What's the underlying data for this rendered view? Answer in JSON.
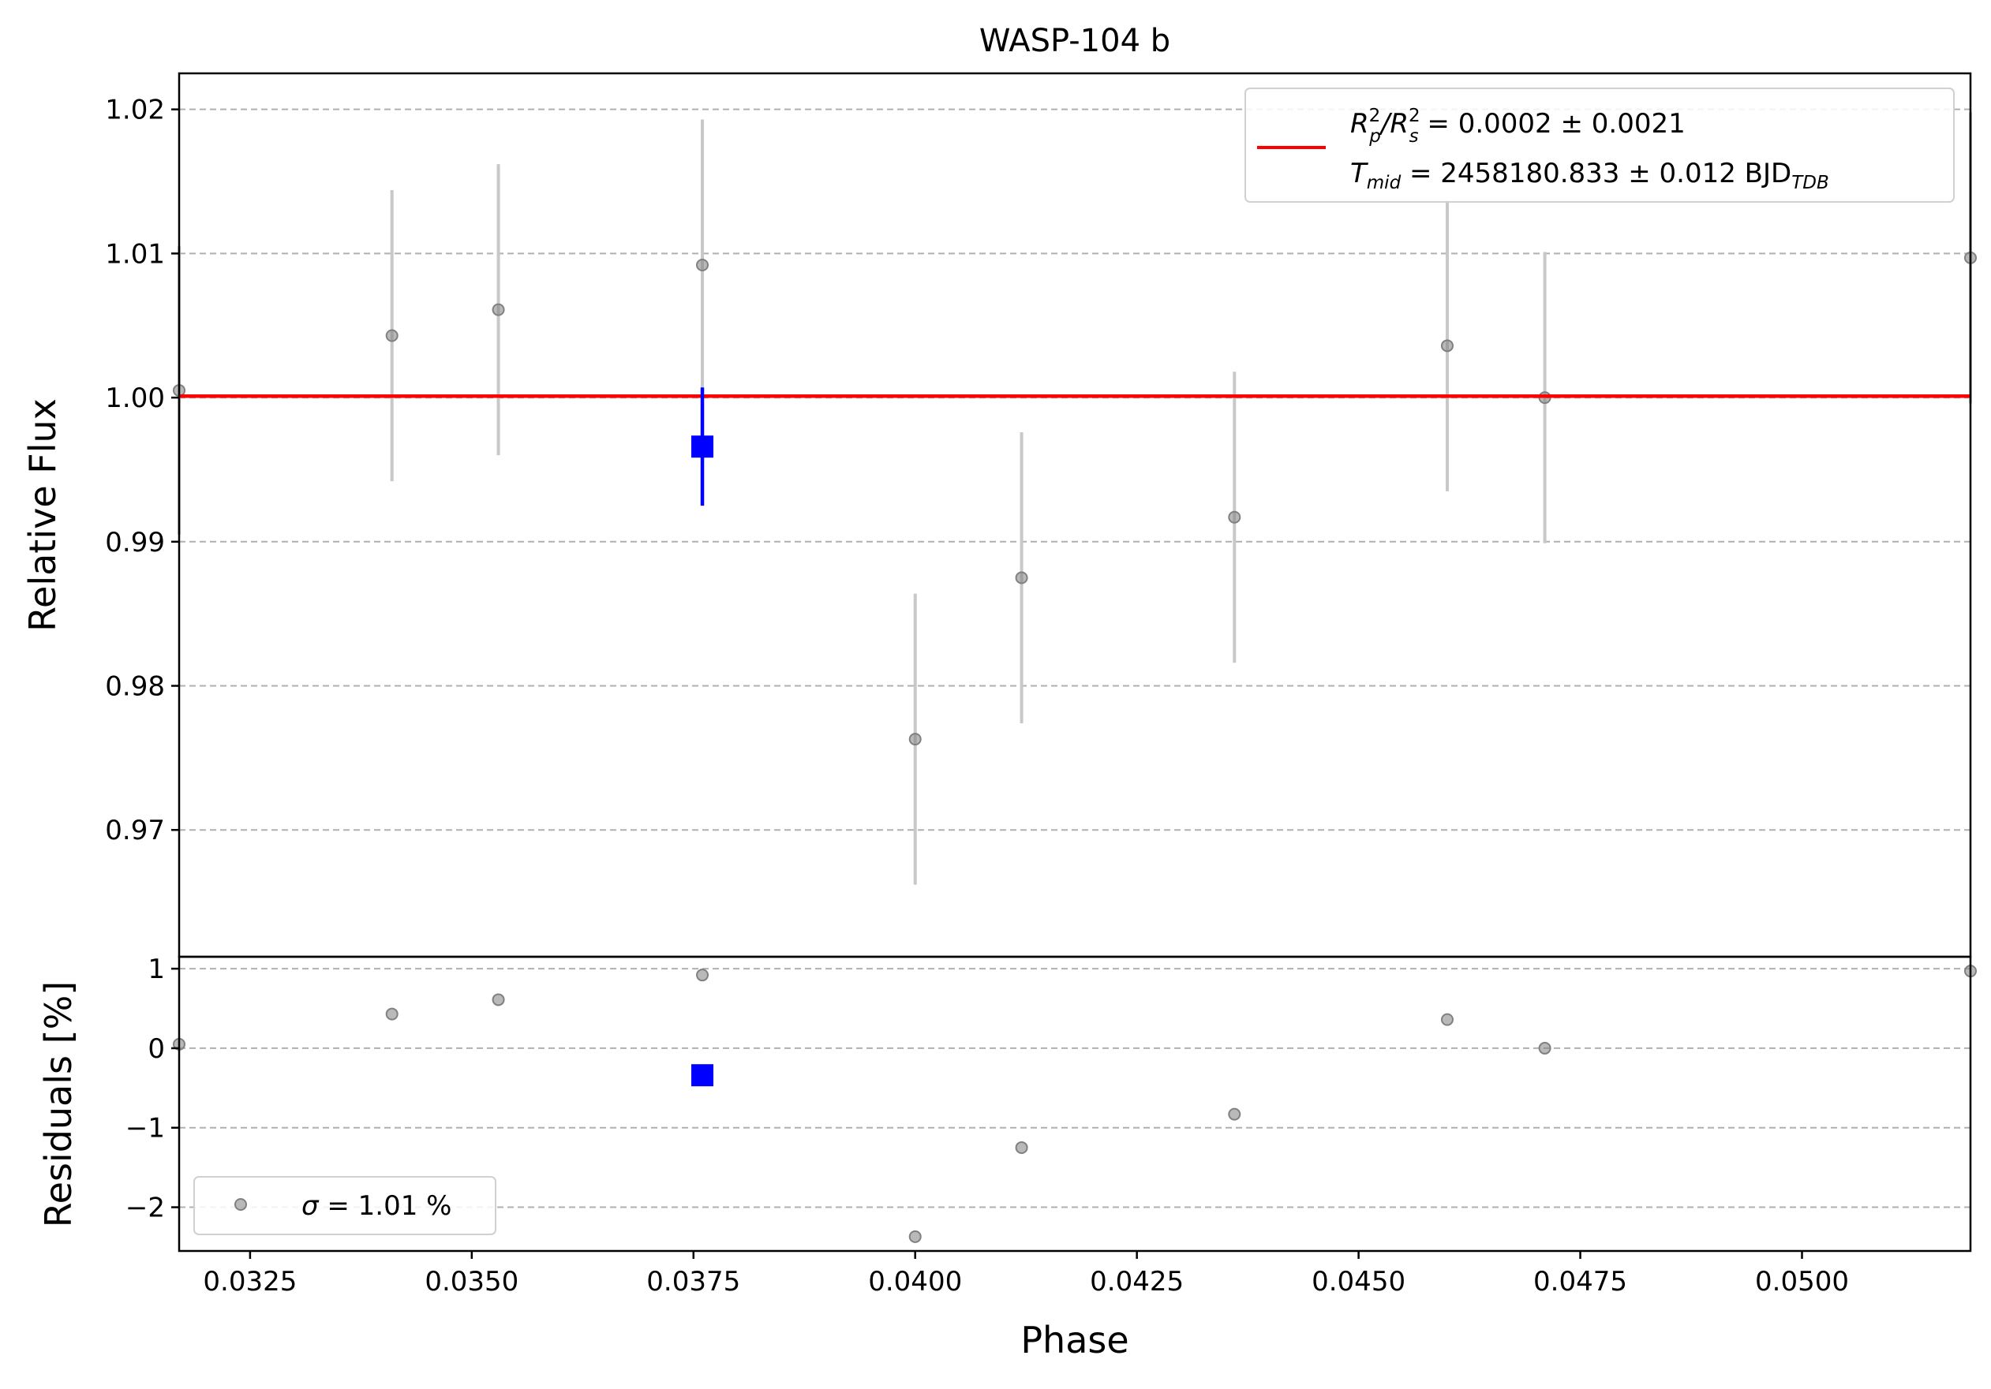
{
  "colors": {
    "model": "#ff0000",
    "binned": "#0000ff",
    "data": "#808080",
    "errorbar": "#c8c8c8",
    "grid": "#b0b0b0",
    "axes": "#000000"
  },
  "chart_data": [
    {
      "type": "scatter",
      "title": "WASP-104 b",
      "xlabel": "",
      "ylabel": "Relative Flux",
      "xlim": [
        0.0317,
        0.0519
      ],
      "ylim": [
        0.9612,
        1.0225
      ],
      "yticks": [
        0.97,
        0.98,
        0.99,
        1.0,
        1.01,
        1.02
      ],
      "ytick_labels": [
        "0.97",
        "0.98",
        "0.99",
        "1.00",
        "1.01",
        "1.02"
      ],
      "grid": true,
      "legend_position": "top-right",
      "legend": {
        "model_line": {
          "name_a": "R",
          "name_a_sub": "p",
          "name_b": "/R",
          "name_b_sub": "s",
          "power": "2",
          "value": " = 0.0002 ± 0.0021"
        },
        "tmid": {
          "name": "T",
          "name_sub": "mid",
          "value": " = 2458180.833 ± 0.012 BJD",
          "unit_sub": "TDB"
        }
      },
      "series": [
        {
          "type": "errorbar-scatter",
          "points": [
            {
              "x": 0.0317,
              "y": 1.0005,
              "err": 0.01
            },
            {
              "x": 0.0341,
              "y": 1.0043,
              "err": 0.0101
            },
            {
              "x": 0.0353,
              "y": 1.0061,
              "err": 0.0101
            },
            {
              "x": 0.0376,
              "y": 1.0092,
              "err": 0.0101
            },
            {
              "x": 0.04,
              "y": 0.9763,
              "err": 0.0101
            },
            {
              "x": 0.0412,
              "y": 0.9875,
              "err": 0.0101
            },
            {
              "x": 0.0436,
              "y": 0.9917,
              "err": 0.0101
            },
            {
              "x": 0.046,
              "y": 1.0036,
              "err": 0.0101
            },
            {
              "x": 0.0471,
              "y": 1.0,
              "err": 0.0101
            },
            {
              "x": 0.0519,
              "y": 1.0097,
              "err": 0.0101
            }
          ]
        },
        {
          "type": "model-line",
          "y": 1.0001
        },
        {
          "type": "binned",
          "points": [
            {
              "x": 0.0376,
              "y": 0.9966,
              "err": 0.0041
            }
          ]
        }
      ]
    },
    {
      "type": "scatter",
      "title": "",
      "xlabel": "Phase",
      "ylabel": "Residuals [%]",
      "xlim": [
        0.0317,
        0.0519
      ],
      "ylim": [
        -2.55,
        1.15
      ],
      "yticks": [
        -2,
        -1,
        0,
        1
      ],
      "ytick_labels": [
        "−2",
        "−1",
        "0",
        "1"
      ],
      "xticks": [
        0.0325,
        0.035,
        0.0375,
        0.04,
        0.0425,
        0.045,
        0.0475,
        0.05
      ],
      "xtick_labels": [
        "0.0325",
        "0.0350",
        "0.0375",
        "0.0400",
        "0.0425",
        "0.0450",
        "0.0475",
        "0.0500"
      ],
      "grid": true,
      "legend_position": "bottom-left",
      "legend": {
        "symbol": "σ",
        "value": " = 1.01 %"
      },
      "series": [
        {
          "type": "residuals",
          "points": [
            {
              "x": 0.0317,
              "y": 0.05
            },
            {
              "x": 0.0341,
              "y": 0.43
            },
            {
              "x": 0.0353,
              "y": 0.61
            },
            {
              "x": 0.0376,
              "y": 0.92
            },
            {
              "x": 0.04,
              "y": -2.37
            },
            {
              "x": 0.0412,
              "y": -1.25
            },
            {
              "x": 0.0436,
              "y": -0.83
            },
            {
              "x": 0.046,
              "y": 0.36
            },
            {
              "x": 0.0471,
              "y": 0.0
            },
            {
              "x": 0.0519,
              "y": 0.97
            }
          ]
        },
        {
          "type": "binned",
          "points": [
            {
              "x": 0.0376,
              "y": -0.34
            }
          ]
        }
      ]
    }
  ]
}
